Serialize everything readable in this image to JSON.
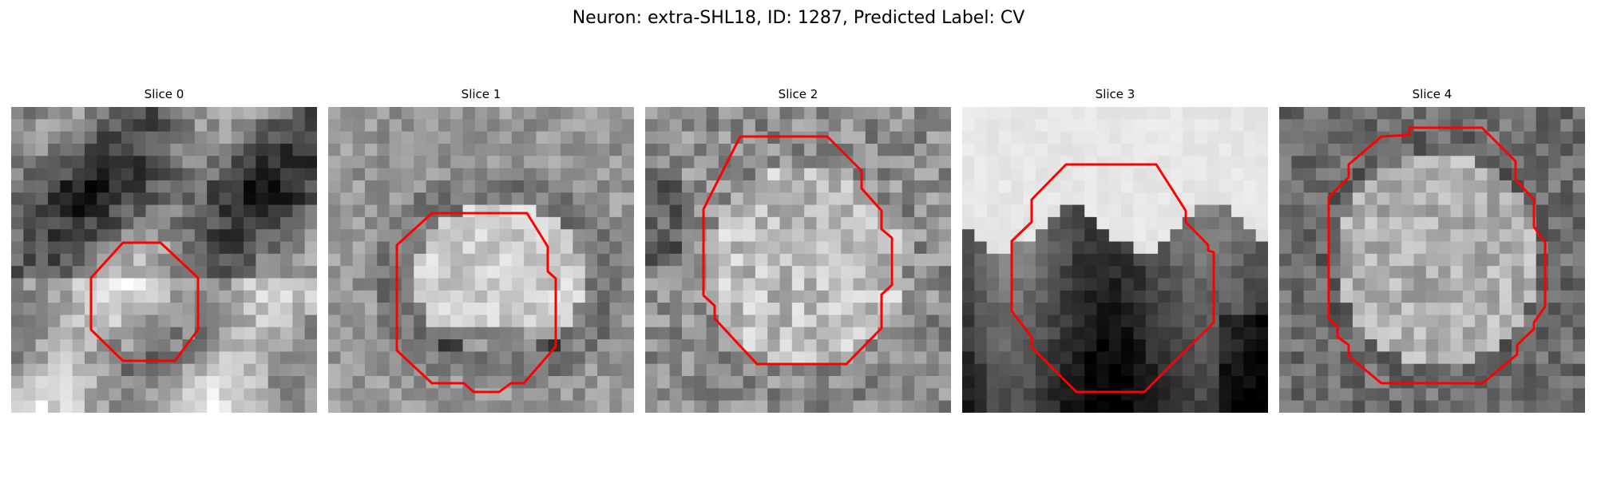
{
  "figure": {
    "title": "Neuron: extra-SHL18, ID: 1287, Predicted Label: CV"
  },
  "slices": [
    {
      "label": "Slice 0",
      "tone": "medium-dark textured background with bright lower region",
      "contour_color": "#ff0000"
    },
    {
      "label": "Slice 1",
      "tone": "medium gray with bright central blob",
      "contour_color": "#ff0000"
    },
    {
      "label": "Slice 2",
      "tone": "bright speckled interior, darker edges",
      "contour_color": "#ff0000"
    },
    {
      "label": "Slice 3",
      "tone": "very bright top half, dark bottom half",
      "contour_color": "#ff0000"
    },
    {
      "label": "Slice 4",
      "tone": "dark border with bright speckled interior",
      "contour_color": "#ff0000"
    }
  ],
  "colors": {
    "contour": "#ff0000",
    "background": "#ffffff"
  }
}
